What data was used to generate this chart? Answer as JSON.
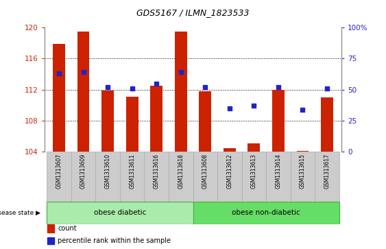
{
  "title": "GDS5167 / ILMN_1823533",
  "samples": [
    "GSM1313607",
    "GSM1313609",
    "GSM1313610",
    "GSM1313611",
    "GSM1313616",
    "GSM1313618",
    "GSM1313608",
    "GSM1313612",
    "GSM1313613",
    "GSM1313614",
    "GSM1313615",
    "GSM1313617"
  ],
  "counts": [
    117.9,
    119.5,
    111.9,
    111.1,
    112.5,
    119.5,
    111.8,
    104.5,
    105.1,
    112.0,
    104.1,
    111.0
  ],
  "percentiles": [
    63,
    64,
    52,
    51,
    55,
    64,
    52,
    35,
    37,
    52,
    34,
    51
  ],
  "ylim_left": [
    104,
    120
  ],
  "ylim_right": [
    0,
    100
  ],
  "yticks_left": [
    104,
    108,
    112,
    116,
    120
  ],
  "yticks_right": [
    0,
    25,
    50,
    75,
    100
  ],
  "bar_color": "#cc2200",
  "dot_color": "#2222cc",
  "bar_bottom": 104,
  "group1_label": "obese diabetic",
  "group2_label": "obese non-diabetic",
  "group1_count": 6,
  "group2_count": 6,
  "group_color_light": "#aaeaaa",
  "group_color_dark": "#66dd66",
  "group_border_color": "#44aa44",
  "disease_state_label": "disease state",
  "legend_count_label": "count",
  "legend_percentile_label": "percentile rank within the sample",
  "grid_color": "#000000",
  "tick_bg_color": "#cccccc",
  "tick_border_color": "#aaaaaa",
  "right_axis_color": "#2222cc",
  "left_axis_color": "#cc2200",
  "title_fontsize": 9,
  "bar_width": 0.5
}
